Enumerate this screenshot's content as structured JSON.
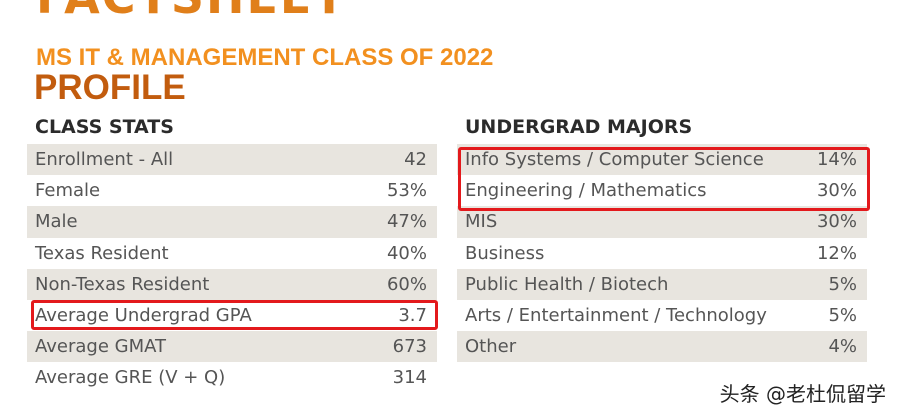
{
  "header": {
    "cut_title": "FACTSHEET",
    "subtitle": "MS IT & MANAGEMENT CLASS OF 2022",
    "title": "PROFILE"
  },
  "class_stats": {
    "heading": "CLASS STATS",
    "rows": [
      {
        "label": "Enrollment - All",
        "value": "42"
      },
      {
        "label": "Female",
        "value": "53%"
      },
      {
        "label": "Male",
        "value": "47%"
      },
      {
        "label": "Texas Resident",
        "value": "40%"
      },
      {
        "label": "Non-Texas Resident",
        "value": "60%"
      },
      {
        "label": "Average Undergrad GPA",
        "value": "3.7"
      },
      {
        "label": "Average GMAT",
        "value": "673"
      },
      {
        "label": "Average GRE (V + Q)",
        "value": "314"
      }
    ]
  },
  "undergrad_majors": {
    "heading": "UNDERGRAD MAJORS",
    "rows": [
      {
        "label": "Info Systems / Computer Science",
        "value": "14%"
      },
      {
        "label": "Engineering / Mathematics",
        "value": "30%"
      },
      {
        "label": "MIS",
        "value": "30%"
      },
      {
        "label": "Business",
        "value": "12%"
      },
      {
        "label": "Public Health / Biotech",
        "value": "5%"
      },
      {
        "label": "Arts / Entertainment / Technology",
        "value": "5%"
      },
      {
        "label": "Other",
        "value": "4%"
      }
    ]
  },
  "watermark": "头条 @老杜侃留学",
  "colors": {
    "orange": "#f2901f",
    "dark_orange": "#c25c0e",
    "row_shade": "#e8e5df",
    "highlight": "#e3191c"
  }
}
